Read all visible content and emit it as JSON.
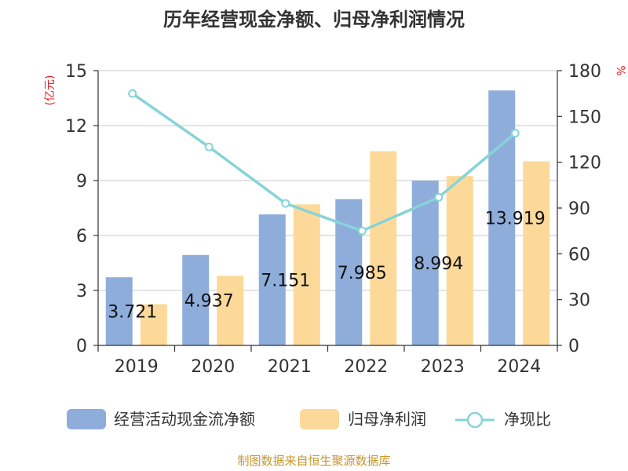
{
  "chart_data": {
    "type": "bar+line",
    "title": "历年经营现金净额、归母净利润情况",
    "categories": [
      "2019",
      "2020",
      "2021",
      "2022",
      "2023",
      "2024"
    ],
    "series": [
      {
        "name": "经营活动现金流净额",
        "type": "bar",
        "axis": "left",
        "color": "#8eaddb",
        "values": [
          3.721,
          4.937,
          7.151,
          7.985,
          8.994,
          13.919
        ]
      },
      {
        "name": "归母净利润",
        "type": "bar",
        "axis": "left",
        "color": "#fdd999",
        "values": [
          2.25,
          3.8,
          7.7,
          10.6,
          9.25,
          10.05
        ]
      },
      {
        "name": "净现比",
        "type": "line",
        "axis": "right",
        "color": "#86d4d8",
        "values": [
          165,
          130,
          93,
          75,
          97,
          139
        ]
      }
    ],
    "data_labels": [
      "3.721",
      "4.937",
      "7.151",
      "7.985",
      "8.994",
      "13.919"
    ],
    "y_left": {
      "label": "(亿元)",
      "min": 0,
      "max": 15,
      "ticks": [
        "0",
        "3",
        "6",
        "9",
        "12",
        "15"
      ]
    },
    "y_right": {
      "label": "%",
      "min": 0,
      "max": 180,
      "ticks": [
        "0",
        "30",
        "60",
        "90",
        "120",
        "150",
        "180"
      ]
    },
    "grid": true,
    "legend_position": "bottom"
  },
  "source": "制图数据来自恒生聚源数据库"
}
